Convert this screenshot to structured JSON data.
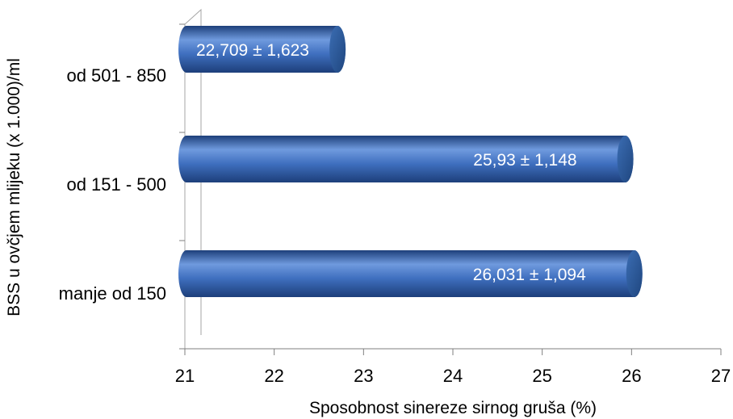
{
  "chart_data": {
    "type": "bar",
    "orientation": "horizontal",
    "style": "3d-cylinder",
    "categories": [
      "manje od 150",
      "od 151 - 500",
      "od 501 - 850"
    ],
    "values": [
      26.031,
      25.93,
      22.709
    ],
    "data_labels": [
      "26,031 ± 1,094",
      "25,93 ± 1,148",
      "22,709 ± 1,623"
    ],
    "xlabel": "Sposobnost sinereze sirnog gruša (%)",
    "ylabel": "BSS u ovčjem mlijeku (x 1.000)/ml",
    "xlim": [
      21,
      27
    ],
    "x_ticks": [
      21,
      22,
      23,
      24,
      25,
      26,
      27
    ],
    "grid": false,
    "legend": "none",
    "colors": {
      "bar_light": "#6f9ade",
      "bar_mid": "#3f6fbf",
      "bar_dark": "#1d3f7a",
      "cap": "#2f5c9e",
      "axis": "#7f7f7f",
      "wall": "#a6a6a6"
    }
  }
}
